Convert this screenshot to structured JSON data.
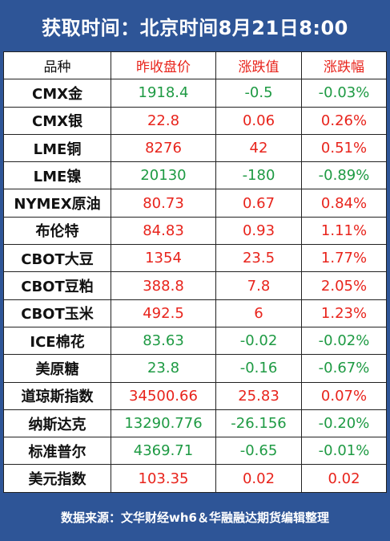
{
  "title": "获取时间：北京时间8月21日8:00",
  "columns": [
    "品种",
    "昨收盘价",
    "涨跌值",
    "涨跌幅"
  ],
  "rows": [
    {
      "name": "CMX金",
      "close": "1918.4",
      "change": "-0.5",
      "pct": "-0.03%",
      "dir": "down"
    },
    {
      "name": "CMX银",
      "close": "22.8",
      "change": "0.06",
      "pct": "0.26%",
      "dir": "up"
    },
    {
      "name": "LME铜",
      "close": "8276",
      "change": "42",
      "pct": "0.51%",
      "dir": "up"
    },
    {
      "name": "LME镍",
      "close": "20130",
      "change": "-180",
      "pct": "-0.89%",
      "dir": "down"
    },
    {
      "name": "NYMEX原油",
      "close": "80.73",
      "change": "0.67",
      "pct": "0.84%",
      "dir": "up"
    },
    {
      "name": "布伦特",
      "close": "84.83",
      "change": "0.93",
      "pct": "1.11%",
      "dir": "up"
    },
    {
      "name": "CBOT大豆",
      "close": "1354",
      "change": "23.5",
      "pct": "1.77%",
      "dir": "up"
    },
    {
      "name": "CBOT豆粕",
      "close": "388.8",
      "change": "7.8",
      "pct": "2.05%",
      "dir": "up"
    },
    {
      "name": "CBOT玉米",
      "close": "492.5",
      "change": "6",
      "pct": "1.23%",
      "dir": "up"
    },
    {
      "name": "ICE棉花",
      "close": "83.63",
      "change": "-0.02",
      "pct": "-0.02%",
      "dir": "down"
    },
    {
      "name": "美原糖",
      "close": "23.8",
      "change": "-0.16",
      "pct": "-0.67%",
      "dir": "down"
    },
    {
      "name": "道琼斯指数",
      "close": "34500.66",
      "change": "25.83",
      "pct": "0.07%",
      "dir": "up"
    },
    {
      "name": "纳斯达克",
      "close": "13290.776",
      "change": "-26.156",
      "pct": "-0.20%",
      "dir": "down"
    },
    {
      "name": "标准普尔",
      "close": "4369.71",
      "change": "-0.65",
      "pct": "-0.01%",
      "dir": "down"
    },
    {
      "name": "美元指数",
      "close": "103.35",
      "change": "0.02",
      "pct": "0.02",
      "dir": "up"
    }
  ],
  "footer": "数据来源：文华财经wh6＆华融融达期货编辑整理",
  "colors": {
    "header_bg": "#2e5597",
    "up": "#e8241c",
    "down": "#1e9a43"
  }
}
